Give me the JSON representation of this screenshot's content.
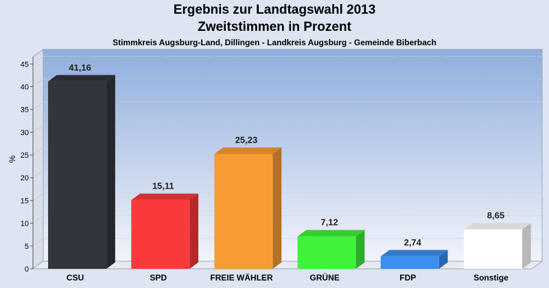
{
  "chart_data": {
    "type": "bar",
    "title": "Ergebnis zur Landtagswahl 2013",
    "title2": "Zweitstimmen in Prozent",
    "subtitle": "Stimmkreis Augsburg-Land, Dillingen - Landkreis Augsburg - Gemeinde Biberbach",
    "ylabel": "%",
    "xlabel": "",
    "ylim": [
      0,
      47
    ],
    "yticks": [
      0,
      5,
      10,
      15,
      20,
      25,
      30,
      35,
      40,
      45
    ],
    "grid": true,
    "categories": [
      "CSU",
      "SPD",
      "FREIE WÄHLER",
      "GRÜNE",
      "FDP",
      "Sonstige"
    ],
    "values": [
      41.16,
      15.11,
      25.23,
      7.12,
      2.74,
      8.65
    ],
    "value_labels": [
      "41,16",
      "15,11",
      "25,23",
      "7,12",
      "2,74",
      "8,65"
    ],
    "colors": [
      "#33353d",
      "#fa3a3a",
      "#f99b35",
      "#3ff23a",
      "#3a8ff0",
      "#ffffff"
    ]
  }
}
